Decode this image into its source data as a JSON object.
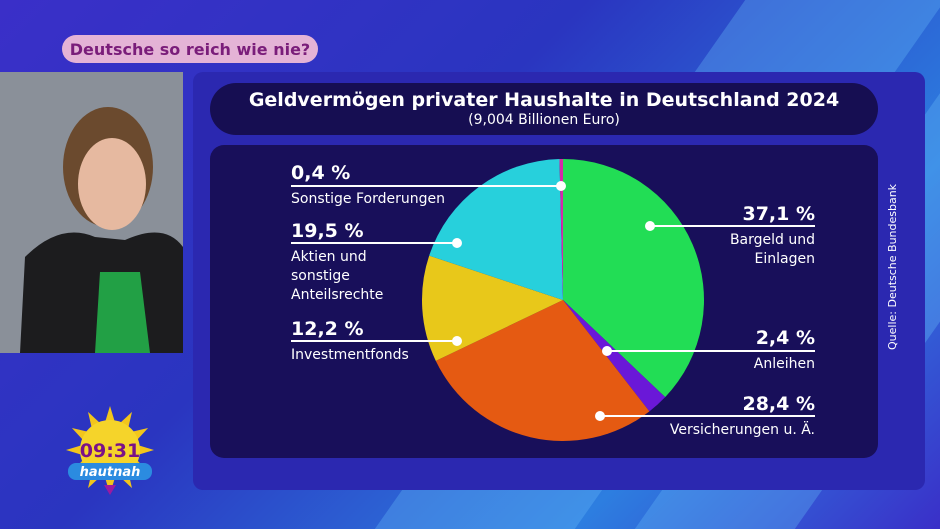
{
  "broadcast": {
    "topic": "Deutsche so reich wie nie?",
    "clock": "09:31",
    "show_name": "hautnah"
  },
  "chart_data": {
    "type": "pie",
    "title": "Geldvermögen privater Haushalte in Deutschland 2024",
    "subtitle": "(9,004 Billionen Euro)",
    "source": "Quelle: Deutsche Bundesbank",
    "start": "12 o'clock, clockwise",
    "slices": [
      {
        "label": "Bargeld und Einlagen",
        "value": 37.1,
        "pct_label": "37,1 %",
        "color": "#22dd55"
      },
      {
        "label": "Anleihen",
        "value": 2.4,
        "pct_label": "2,4 %",
        "color": "#6a18d8"
      },
      {
        "label": "Versicherungen u. Ä.",
        "value": 28.4,
        "pct_label": "28,4 %",
        "color": "#e55a12"
      },
      {
        "label": "Investmentfonds",
        "value": 12.2,
        "pct_label": "12,2 %",
        "color": "#e8c81a"
      },
      {
        "label": "Aktien und sonstige Anteilsrechte",
        "value": 19.5,
        "pct_label": "19,5 %",
        "color": "#27d0dc"
      },
      {
        "label": "Sonstige Forderungen",
        "value": 0.4,
        "pct_label": "0,4 %",
        "color": "#d62aa8"
      }
    ]
  }
}
